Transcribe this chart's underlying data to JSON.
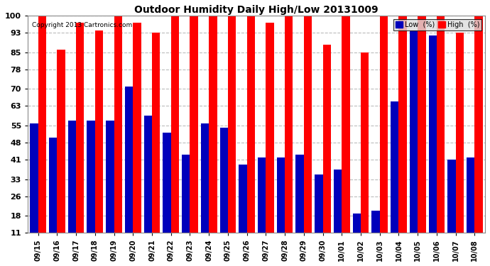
{
  "title": "Outdoor Humidity Daily High/Low 20131009",
  "copyright": "Copyright 2013 Cartronics.com",
  "categories": [
    "09/15",
    "09/16",
    "09/17",
    "09/18",
    "09/19",
    "09/20",
    "09/21",
    "09/22",
    "09/23",
    "09/24",
    "09/25",
    "09/26",
    "09/27",
    "09/28",
    "09/29",
    "09/30",
    "10/01",
    "10/02",
    "10/03",
    "10/04",
    "10/05",
    "10/06",
    "10/07",
    "10/08"
  ],
  "high": [
    100,
    86,
    97,
    94,
    100,
    97,
    93,
    100,
    100,
    100,
    100,
    100,
    97,
    100,
    100,
    88,
    100,
    85,
    100,
    100,
    100,
    100,
    93,
    100
  ],
  "low": [
    56,
    50,
    57,
    57,
    57,
    71,
    59,
    52,
    43,
    56,
    54,
    39,
    42,
    42,
    43,
    35,
    37,
    19,
    20,
    65,
    94,
    92,
    41,
    42
  ],
  "high_color": "#ff0000",
  "low_color": "#0000bb",
  "background_color": "#ffffff",
  "grid_color": "#bbbbbb",
  "ylim_min": 11,
  "ylim_max": 100,
  "yticks": [
    11,
    18,
    26,
    33,
    41,
    48,
    55,
    63,
    70,
    78,
    85,
    93,
    100
  ],
  "legend_low_label": "Low  (%)",
  "legend_high_label": "High  (%)"
}
